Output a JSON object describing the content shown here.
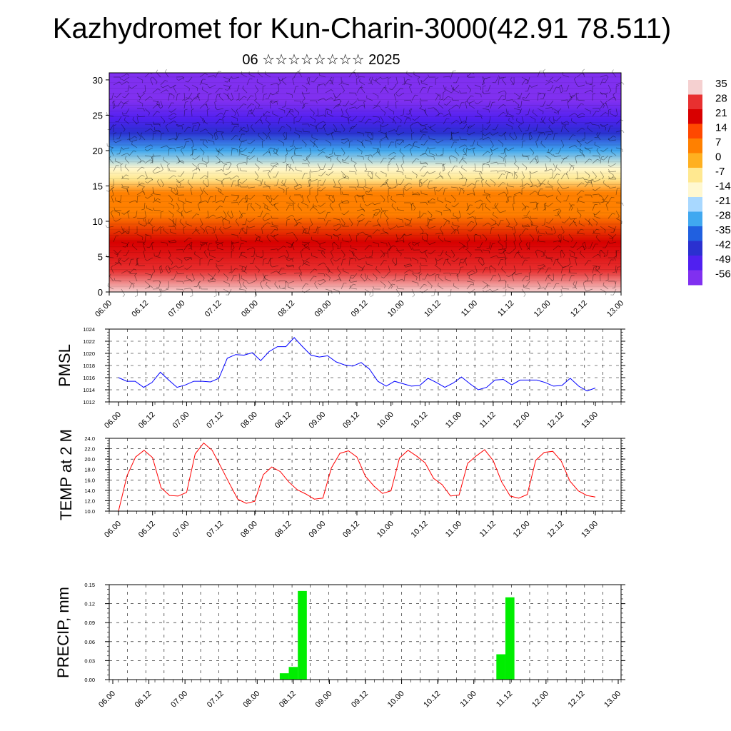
{
  "title": "Kazhydromet for Kun-Charin-3000(42.91 78.511)",
  "subtitle": "06 ☆☆☆☆☆☆☆☆ 2025",
  "x_ticks": [
    "06.00",
    "06.12",
    "07.00",
    "07.12",
    "08.00",
    "08.12",
    "09.00",
    "09.12",
    "10.00",
    "10.12",
    "11.00",
    "11.12",
    "12.00",
    "12.12",
    "13.00"
  ],
  "colorbar": {
    "labels": [
      "35",
      "28",
      "21",
      "14",
      "7",
      "0",
      "-7",
      "-14",
      "-21",
      "-28",
      "-35",
      "-42",
      "-49",
      "-56"
    ],
    "colors": [
      "#f5d0d0",
      "#e83030",
      "#d80000",
      "#ff4800",
      "#ff8000",
      "#ffb020",
      "#ffe890",
      "#fff8d0",
      "#a8d8ff",
      "#40a8f0",
      "#2060e0",
      "#2a30d0",
      "#5020f0",
      "#8030f0"
    ]
  },
  "chart_data": [
    {
      "type": "heatmap",
      "name": "upper-air temperature cross-section with wind barbs",
      "x_categories": [
        "06.00",
        "06.12",
        "07.00",
        "07.12",
        "08.00",
        "08.12",
        "09.00",
        "09.12",
        "10.00",
        "10.12",
        "11.00",
        "11.12",
        "12.00",
        "12.12",
        "13.00"
      ],
      "y_ticks": [
        0,
        5,
        10,
        15,
        20,
        25,
        30
      ],
      "ylim": [
        0,
        31
      ],
      "color_levels": [
        35,
        28,
        21,
        14,
        7,
        0,
        -7,
        -14,
        -21,
        -28,
        -35,
        -42,
        -49,
        -56
      ],
      "temperature_profile": [
        {
          "y": 0,
          "value": 33
        },
        {
          "y": 3,
          "value": 24
        },
        {
          "y": 7,
          "value": 14
        },
        {
          "y": 11,
          "value": 5
        },
        {
          "y": 14,
          "value": 0
        },
        {
          "y": 16,
          "value": -8
        },
        {
          "y": 17.5,
          "value": -20
        },
        {
          "y": 20,
          "value": -34
        },
        {
          "y": 22.5,
          "value": -46
        },
        {
          "y": 24.5,
          "value": -56
        },
        {
          "y": 27,
          "value": -60
        },
        {
          "y": 31,
          "value": -60
        }
      ]
    },
    {
      "type": "line",
      "ylabel": "PMSL",
      "ylim": [
        1012,
        1024
      ],
      "y_ticks": [
        "1012",
        "1014",
        "1016",
        "1018",
        "1020",
        "1022",
        "1024"
      ],
      "series": [
        {
          "color": "#0000ff",
          "values": [
            1016.0,
            1015.4,
            1015.4,
            1014.4,
            1015.2,
            1016.9,
            1015.6,
            1014.4,
            1014.8,
            1015.4,
            1015.4,
            1015.3,
            1015.9,
            1019.2,
            1019.8,
            1019.7,
            1020.1,
            1018.8,
            1020.3,
            1021.1,
            1021.1,
            1022.6,
            1021.1,
            1019.7,
            1019.4,
            1019.6,
            1018.6,
            1018.1,
            1017.9,
            1018.5,
            1017.4,
            1015.4,
            1014.6,
            1015.4,
            1015.0,
            1014.6,
            1014.7,
            1015.9,
            1015.2,
            1014.4,
            1015.1,
            1016.1,
            1015.0,
            1014.0,
            1014.4,
            1015.6,
            1015.7,
            1014.8,
            1015.6,
            1015.6,
            1015.6,
            1015.2,
            1014.6,
            1014.7,
            1015.9,
            1014.6,
            1013.8,
            1014.3
          ]
        }
      ]
    },
    {
      "type": "line",
      "ylabel": "TEMP at 2 M",
      "ylim": [
        10.0,
        24.0
      ],
      "y_ticks": [
        "10.0",
        "12.0",
        "14.0",
        "16.0",
        "18.0",
        "20.0",
        "22.0",
        "24.0"
      ],
      "series": [
        {
          "color": "#ff0000",
          "values": [
            10.0,
            16.8,
            20.4,
            21.7,
            20.3,
            14.5,
            13.0,
            12.9,
            13.6,
            21.0,
            23.1,
            21.7,
            18.6,
            15.4,
            12.3,
            11.5,
            11.9,
            17.0,
            18.5,
            17.6,
            15.6,
            14.1,
            13.3,
            12.3,
            12.5,
            18.3,
            21.1,
            21.6,
            20.4,
            16.7,
            14.8,
            13.4,
            13.9,
            20.2,
            21.7,
            20.6,
            19.3,
            16.3,
            15.1,
            12.9,
            13.1,
            19.2,
            20.6,
            21.8,
            19.7,
            15.6,
            12.9,
            12.5,
            13.2,
            19.8,
            21.3,
            21.5,
            19.6,
            15.8,
            13.9,
            13.0,
            12.7
          ]
        }
      ]
    },
    {
      "type": "bar",
      "ylabel": "PRECIP, mm",
      "ylim": [
        0,
        0.15
      ],
      "y_ticks": [
        "0.00",
        "0.03",
        "0.06",
        "0.09",
        "0.12",
        "0.15"
      ],
      "bar_color": "#00ee00",
      "bars": [
        {
          "x": "08.09",
          "value": 0.01
        },
        {
          "x": "08.12",
          "value": 0.02
        },
        {
          "x": "08.15",
          "value": 0.14
        },
        {
          "x": "11.09",
          "value": 0.04
        },
        {
          "x": "11.12",
          "value": 0.13
        }
      ]
    }
  ]
}
